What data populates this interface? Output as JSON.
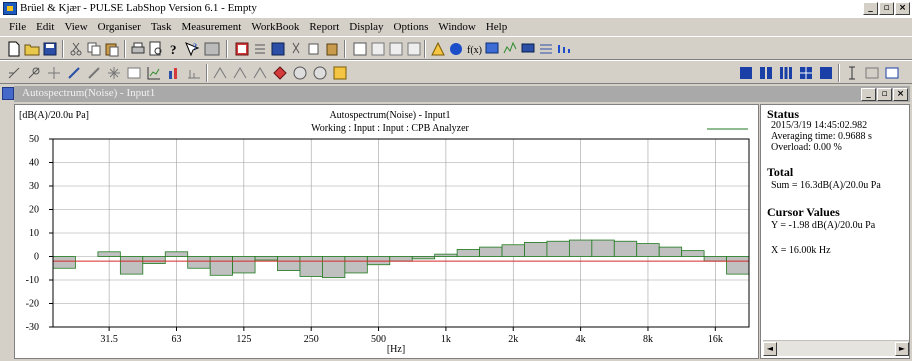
{
  "app": {
    "title": "Brüel & Kjær - PULSE LabShop Version 6.1 - Empty"
  },
  "menu": {
    "items": [
      {
        "label": "File"
      },
      {
        "label": "Edit"
      },
      {
        "label": "View"
      },
      {
        "label": "Organiser"
      },
      {
        "label": "Task"
      },
      {
        "label": "Measurement"
      },
      {
        "label": "WorkBook"
      },
      {
        "label": "Report"
      },
      {
        "label": "Display"
      },
      {
        "label": "Options"
      },
      {
        "label": "Window"
      },
      {
        "label": "Help"
      }
    ]
  },
  "window": {
    "title": "Autospectrum(Noise) - Input1"
  },
  "plot": {
    "unit_label": "[dB(A)/20.0u Pa]",
    "title": "Autospectrum(Noise) - Input1",
    "subtitle": "Working : Input : Input : CPB Analyzer",
    "xlabel": "[Hz]"
  },
  "status": {
    "heading": "Status",
    "timestamp": "2015/3/19  14:45:02.982",
    "averaging": "Averaging time:   0.9688 s",
    "overload": "Overload:   0.00 %"
  },
  "total": {
    "heading": "Total",
    "sum": "Sum = 16.3dB(A)/20.0u Pa"
  },
  "cursor": {
    "heading": "Cursor Values",
    "y": "Y = -1.98 dB(A)/20.0u Pa",
    "x": "X = 16.00k Hz"
  },
  "chart_data": {
    "type": "bar",
    "ylim": [
      -30,
      50
    ],
    "yticks": [
      50,
      40,
      30,
      20,
      10,
      0,
      -10,
      -20,
      -30
    ],
    "xtick_labels": [
      "31.5",
      "63",
      "125",
      "250",
      "500",
      "1k",
      "2k",
      "4k",
      "8k",
      "16k"
    ],
    "bands": [
      "20",
      "25",
      "31.5",
      "40",
      "50",
      "63",
      "80",
      "100",
      "125",
      "160",
      "200",
      "250",
      "315",
      "400",
      "500",
      "630",
      "800",
      "1k",
      "1.25k",
      "1.6k",
      "2k",
      "2.5k",
      "3.15k",
      "4k",
      "5k",
      "6.3k",
      "8k",
      "10k",
      "12.5k",
      "16k",
      "20k"
    ],
    "values": [
      -5,
      0,
      2,
      -7.5,
      -3,
      2,
      -5,
      -8,
      -7,
      -1.5,
      -6,
      -8.5,
      -9,
      -7,
      -3.5,
      -2,
      -1,
      1,
      3,
      4,
      5,
      6,
      6.5,
      7,
      7,
      6.5,
      5.5,
      4,
      2.5,
      -2,
      -7.5
    ],
    "cursor_x": "16.00k",
    "cursor_y": -1.98,
    "grid": true,
    "colors": {
      "bar_fill": "#c0c0c0",
      "bar_edge": "#1e7a1e",
      "cursor": "#d62828",
      "grid": "#a0a0a0"
    }
  }
}
